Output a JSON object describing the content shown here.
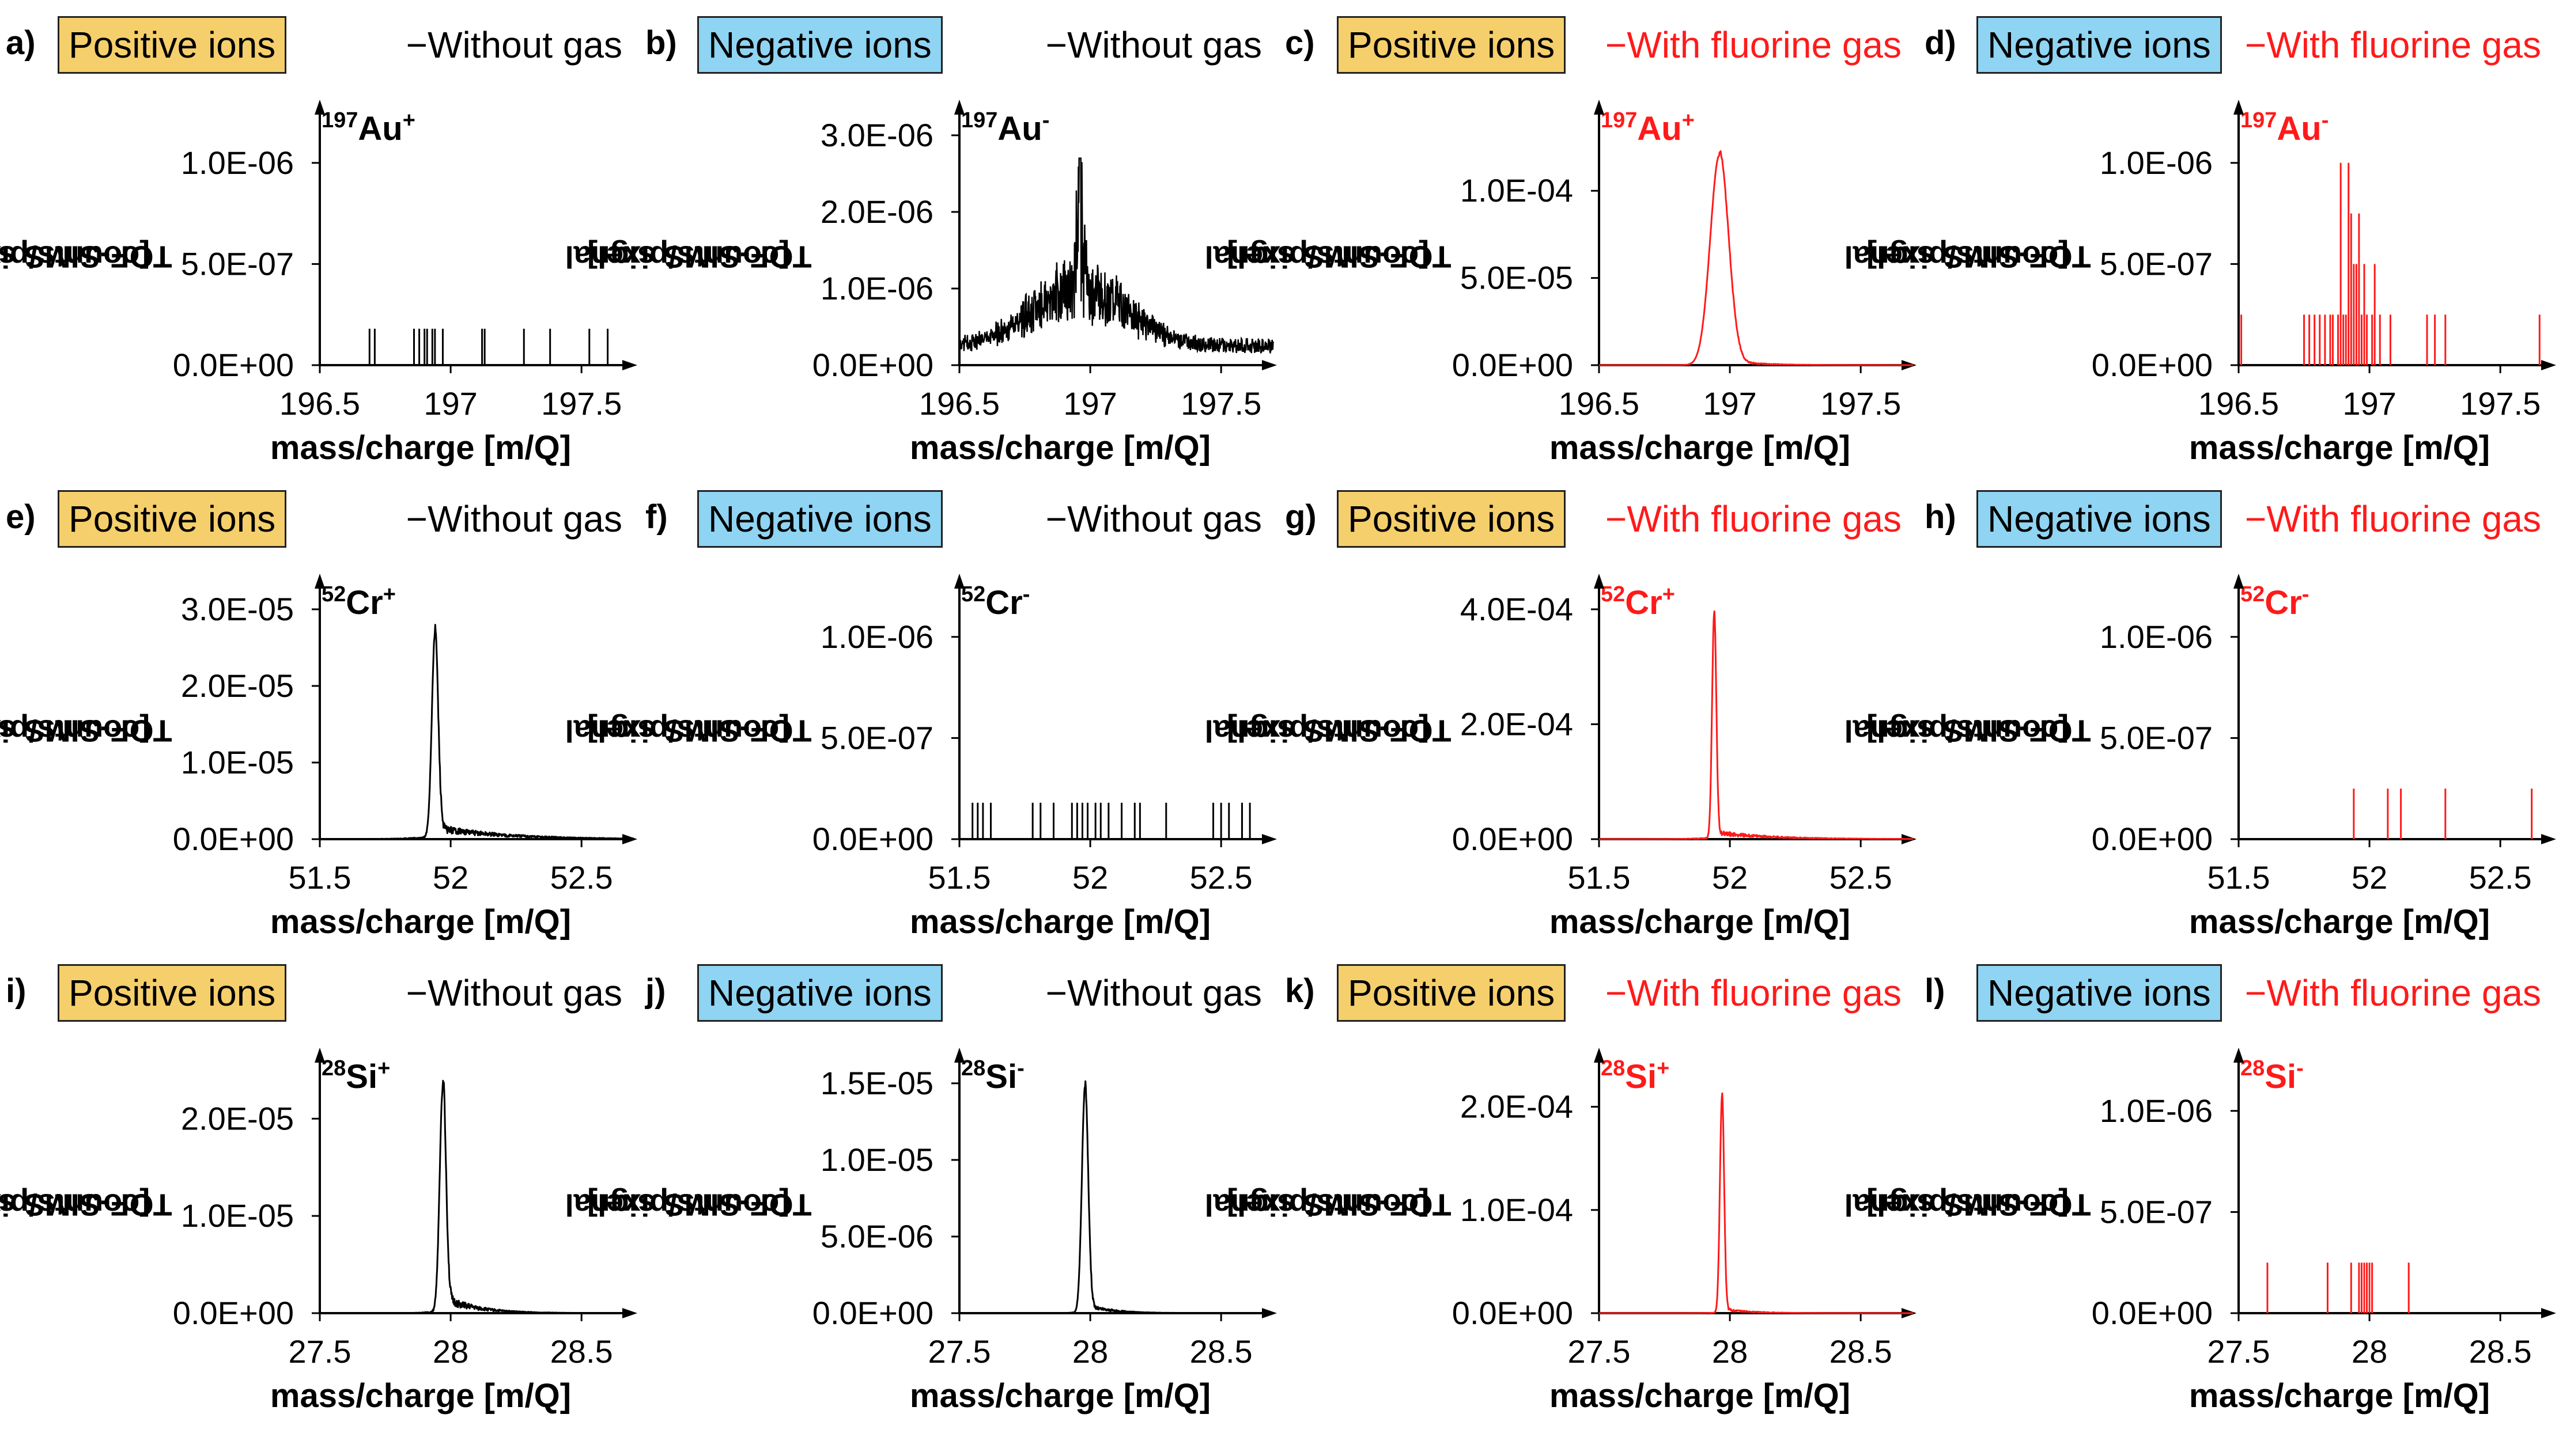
{
  "y_axis_label_line1": "TOF-SIMS signal",
  "y_axis_label_line2": "[counts/pixel]",
  "x_axis_label": "mass/charge [m/Q]",
  "colors": {
    "without_gas": "#000000",
    "with_gas": "#ff1a1a",
    "positive_box": "#f5cf6b",
    "negative_box": "#8fd4f2"
  },
  "chart_data": [
    {
      "panel": "a)",
      "ion_type": "Positive ions",
      "ion_class": "pos",
      "condition": "Without gas",
      "gas": false,
      "species_mass": "197",
      "species_element": "Au",
      "species_charge": "+",
      "type": "line",
      "style": "sparse",
      "xlim": [
        196.5,
        197.7
      ],
      "x_ticks": [
        196.5,
        197,
        197.5
      ],
      "x_tick_labels": [
        "196.5",
        "197",
        "197.5"
      ],
      "ylim": [
        0,
        1.25e-06
      ],
      "y_ticks": [
        0,
        5e-07,
        1e-06
      ],
      "y_tick_labels": [
        "0.0E+00",
        "5.0E-07",
        "1.0E-06"
      ],
      "spikes_x": [
        196.69,
        196.71,
        196.86,
        196.88,
        196.9,
        196.91,
        196.93,
        196.94,
        196.97,
        197.12,
        197.13,
        197.28,
        197.38,
        197.53,
        197.6
      ],
      "spikes_y": [
        1.8e-07,
        1.8e-07,
        1.8e-07,
        1.8e-07,
        1.8e-07,
        1.8e-07,
        1.8e-07,
        1.8e-07,
        1.8e-07,
        1.8e-07,
        1.8e-07,
        1.8e-07,
        1.8e-07,
        1.8e-07,
        1.8e-07
      ]
    },
    {
      "panel": "b)",
      "ion_type": "Negative ions",
      "ion_class": "neg",
      "condition": "Without gas",
      "gas": false,
      "species_mass": "197",
      "species_element": "Au",
      "species_charge": "-",
      "type": "line",
      "style": "noisy",
      "xlim": [
        196.5,
        197.7
      ],
      "x_ticks": [
        196.5,
        197,
        197.5
      ],
      "x_tick_labels": [
        "196.5",
        "197",
        "197.5"
      ],
      "ylim": [
        0,
        3.3e-06
      ],
      "y_ticks": [
        0,
        1e-06,
        2e-06,
        3e-06
      ],
      "y_tick_labels": [
        "0.0E+00",
        "1.0E-06",
        "2.0E-06",
        "3.0E-06"
      ],
      "peak_x": 196.96,
      "peak_y": 2.7e-06,
      "peak_width": 0.06,
      "baseline": 1.5e-07,
      "noise": 4e-07,
      "broad_y": 9e-07,
      "broad_width": 0.18
    },
    {
      "panel": "c)",
      "ion_type": "Positive ions",
      "ion_class": "pos",
      "condition": "With fluorine gas",
      "gas": true,
      "species_mass": "197",
      "species_element": "Au",
      "species_charge": "+",
      "type": "line",
      "style": "peak",
      "xlim": [
        196.5,
        197.7
      ],
      "x_ticks": [
        196.5,
        197,
        197.5
      ],
      "x_tick_labels": [
        "196.5",
        "197",
        "197.5"
      ],
      "ylim": [
        0,
        0.000145
      ],
      "y_ticks": [
        0,
        5e-05,
        0.0001
      ],
      "y_tick_labels": [
        "0.0E+00",
        "5.0E-05",
        "1.0E-04"
      ],
      "peak_x": 196.96,
      "peak_y": 0.00012,
      "peak_width": 0.035,
      "tail": 3e-06,
      "tail_width": 0.12
    },
    {
      "panel": "d)",
      "ion_type": "Negative ions",
      "ion_class": "neg",
      "condition": "With fluorine gas",
      "gas": true,
      "species_mass": "197",
      "species_element": "Au",
      "species_charge": "-",
      "type": "line",
      "style": "sparse",
      "xlim": [
        196.5,
        197.7
      ],
      "x_ticks": [
        196.5,
        197,
        197.5
      ],
      "x_tick_labels": [
        "196.5",
        "197",
        "197.5"
      ],
      "ylim": [
        0,
        1.25e-06
      ],
      "y_ticks": [
        0,
        5e-07,
        1e-06
      ],
      "y_tick_labels": [
        "0.0E+00",
        "5.0E-07",
        "1.0E-06"
      ],
      "spikes_x": [
        196.51,
        196.75,
        196.77,
        196.79,
        196.81,
        196.83,
        196.85,
        196.86,
        196.88,
        196.89,
        196.9,
        196.91,
        196.92,
        196.93,
        196.94,
        196.95,
        196.96,
        196.97,
        196.98,
        196.99,
        197.01,
        197.02,
        197.04,
        197.08,
        197.22,
        197.25,
        197.29,
        197.65
      ],
      "spikes_y": [
        2.5e-07,
        2.5e-07,
        2.5e-07,
        2.5e-07,
        2.5e-07,
        2.5e-07,
        2.5e-07,
        2.5e-07,
        2.5e-07,
        1e-06,
        2.5e-07,
        2.5e-07,
        1e-06,
        7.5e-07,
        5e-07,
        5e-07,
        7.5e-07,
        2.5e-07,
        5e-07,
        2.5e-07,
        2.5e-07,
        5e-07,
        2.5e-07,
        2.5e-07,
        2.5e-07,
        2.5e-07,
        2.5e-07,
        2.5e-07
      ]
    },
    {
      "panel": "e)",
      "ion_type": "Positive ions",
      "ion_class": "pos",
      "condition": "Without gas",
      "gas": false,
      "species_mass": "52",
      "species_element": "Cr",
      "species_charge": "+",
      "type": "line",
      "style": "peak",
      "xlim": [
        51.5,
        52.7
      ],
      "x_ticks": [
        51.5,
        52,
        52.5
      ],
      "x_tick_labels": [
        "51.5",
        "52",
        "52.5"
      ],
      "ylim": [
        0,
        3.3e-05
      ],
      "y_ticks": [
        0,
        1e-05,
        2e-05,
        3e-05
      ],
      "y_tick_labels": [
        "0.0E+00",
        "1.0E-05",
        "2.0E-05",
        "3.0E-05"
      ],
      "peak_x": 51.94,
      "peak_y": 2.65e-05,
      "peak_width": 0.012,
      "tail": 1.5e-06,
      "tail_width": 0.25
    },
    {
      "panel": "f)",
      "ion_type": "Negative ions",
      "ion_class": "neg",
      "condition": "Without gas",
      "gas": false,
      "species_mass": "52",
      "species_element": "Cr",
      "species_charge": "-",
      "type": "line",
      "style": "sparse",
      "xlim": [
        51.5,
        52.7
      ],
      "x_ticks": [
        51.5,
        52,
        52.5
      ],
      "x_tick_labels": [
        "51.5",
        "52",
        "52.5"
      ],
      "ylim": [
        0,
        1.25e-06
      ],
      "y_ticks": [
        0,
        5e-07,
        1e-06
      ],
      "y_tick_labels": [
        "0.0E+00",
        "5.0E-07",
        "1.0E-06"
      ],
      "spikes_x": [
        51.55,
        51.57,
        51.59,
        51.62,
        51.78,
        51.81,
        51.86,
        51.93,
        51.95,
        51.97,
        51.99,
        52.02,
        52.04,
        52.07,
        52.12,
        52.17,
        52.19,
        52.29,
        52.47,
        52.5,
        52.53,
        52.58,
        52.61
      ],
      "spikes_y": [
        1.8e-07,
        1.8e-07,
        1.8e-07,
        1.8e-07,
        1.8e-07,
        1.8e-07,
        1.8e-07,
        1.8e-07,
        1.8e-07,
        1.8e-07,
        1.8e-07,
        1.8e-07,
        1.8e-07,
        1.8e-07,
        1.8e-07,
        1.8e-07,
        1.8e-07,
        1.8e-07,
        1.8e-07,
        1.8e-07,
        1.8e-07,
        1.8e-07,
        1.8e-07
      ]
    },
    {
      "panel": "g)",
      "ion_type": "Positive ions",
      "ion_class": "pos",
      "condition": "With fluorine gas",
      "gas": true,
      "species_mass": "52",
      "species_element": "Cr",
      "species_charge": "+",
      "type": "line",
      "style": "peak",
      "xlim": [
        51.5,
        52.7
      ],
      "x_ticks": [
        51.5,
        52,
        52.5
      ],
      "x_tick_labels": [
        "51.5",
        "52",
        "52.5"
      ],
      "ylim": [
        0,
        0.00044
      ],
      "y_ticks": [
        0,
        0.0002,
        0.0004
      ],
      "y_tick_labels": [
        "0.0E+00",
        "2.0E-04",
        "4.0E-04"
      ],
      "peak_x": 51.94,
      "peak_y": 0.00039,
      "peak_width": 0.008,
      "tail": 1.2e-05,
      "tail_width": 0.2
    },
    {
      "panel": "h)",
      "ion_type": "Negative ions",
      "ion_class": "neg",
      "condition": "With fluorine gas",
      "gas": true,
      "species_mass": "52",
      "species_element": "Cr",
      "species_charge": "-",
      "type": "line",
      "style": "sparse",
      "xlim": [
        51.5,
        52.7
      ],
      "x_ticks": [
        51.5,
        52,
        52.5
      ],
      "x_tick_labels": [
        "51.5",
        "52",
        "52.5"
      ],
      "ylim": [
        0,
        1.25e-06
      ],
      "y_ticks": [
        0,
        5e-07,
        1e-06
      ],
      "y_tick_labels": [
        "0.0E+00",
        "5.0E-07",
        "1.0E-06"
      ],
      "spikes_x": [
        51.94,
        52.07,
        52.12,
        52.29,
        52.62
      ],
      "spikes_y": [
        2.5e-07,
        2.5e-07,
        2.5e-07,
        2.5e-07,
        2.5e-07
      ]
    },
    {
      "panel": "i)",
      "ion_type": "Positive ions",
      "ion_class": "pos",
      "condition": "Without gas",
      "gas": false,
      "species_mass": "28",
      "species_element": "Si",
      "species_charge": "+",
      "type": "line",
      "style": "peak",
      "xlim": [
        27.5,
        28.7
      ],
      "x_ticks": [
        27.5,
        28,
        28.5
      ],
      "x_tick_labels": [
        "27.5",
        "28",
        "28.5"
      ],
      "ylim": [
        0,
        2.6e-05
      ],
      "y_ticks": [
        0,
        1e-05,
        2e-05
      ],
      "y_tick_labels": [
        "0.0E+00",
        "1.0E-05",
        "2.0E-05"
      ],
      "peak_x": 27.97,
      "peak_y": 2.3e-05,
      "peak_width": 0.012,
      "tail": 1.6e-06,
      "tail_width": 0.12
    },
    {
      "panel": "j)",
      "ion_type": "Negative ions",
      "ion_class": "neg",
      "condition": "Without gas",
      "gas": false,
      "species_mass": "28",
      "species_element": "Si",
      "species_charge": "-",
      "type": "line",
      "style": "peak",
      "xlim": [
        27.5,
        28.7
      ],
      "x_ticks": [
        27.5,
        28,
        28.5
      ],
      "x_tick_labels": [
        "27.5",
        "28",
        "28.5"
      ],
      "ylim": [
        0,
        1.65e-05
      ],
      "y_ticks": [
        0,
        5e-06,
        1e-05,
        1.5e-05
      ],
      "y_tick_labels": [
        "0.0E+00",
        "5.0E-06",
        "1.0E-05",
        "1.5E-05"
      ],
      "peak_x": 27.98,
      "peak_y": 1.47e-05,
      "peak_width": 0.012,
      "tail": 5e-07,
      "tail_width": 0.1
    },
    {
      "panel": "k)",
      "ion_type": "Positive ions",
      "ion_class": "pos",
      "condition": "With fluorine gas",
      "gas": true,
      "species_mass": "28",
      "species_element": "Si",
      "species_charge": "+",
      "type": "line",
      "style": "peak",
      "xlim": [
        27.5,
        28.7
      ],
      "x_ticks": [
        27.5,
        28,
        28.5
      ],
      "x_tick_labels": [
        "27.5",
        "28",
        "28.5"
      ],
      "ylim": [
        0,
        0.000245
      ],
      "y_ticks": [
        0,
        0.0001,
        0.0002
      ],
      "y_tick_labels": [
        "0.0E+00",
        "1.0E-04",
        "2.0E-04"
      ],
      "peak_x": 27.97,
      "peak_y": 0.00021,
      "peak_width": 0.008,
      "tail": 4e-06,
      "tail_width": 0.1
    },
    {
      "panel": "l)",
      "ion_type": "Negative ions",
      "ion_class": "neg",
      "condition": "With fluorine gas",
      "gas": true,
      "species_mass": "28",
      "species_element": "Si",
      "species_charge": "-",
      "type": "line",
      "style": "sparse",
      "xlim": [
        27.5,
        28.7
      ],
      "x_ticks": [
        27.5,
        28,
        28.5
      ],
      "x_tick_labels": [
        "27.5",
        "28",
        "28.5"
      ],
      "ylim": [
        0,
        1.25e-06
      ],
      "y_ticks": [
        0,
        5e-07,
        1e-06
      ],
      "y_tick_labels": [
        "0.0E+00",
        "5.0E-07",
        "1.0E-06"
      ],
      "spikes_x": [
        27.61,
        27.84,
        27.93,
        27.96,
        27.97,
        27.98,
        27.99,
        28.0,
        28.01,
        28.15
      ],
      "spikes_y": [
        2.5e-07,
        2.5e-07,
        2.5e-07,
        2.5e-07,
        2.5e-07,
        2.5e-07,
        2.5e-07,
        2.5e-07,
        2.5e-07,
        2.5e-07
      ]
    }
  ]
}
